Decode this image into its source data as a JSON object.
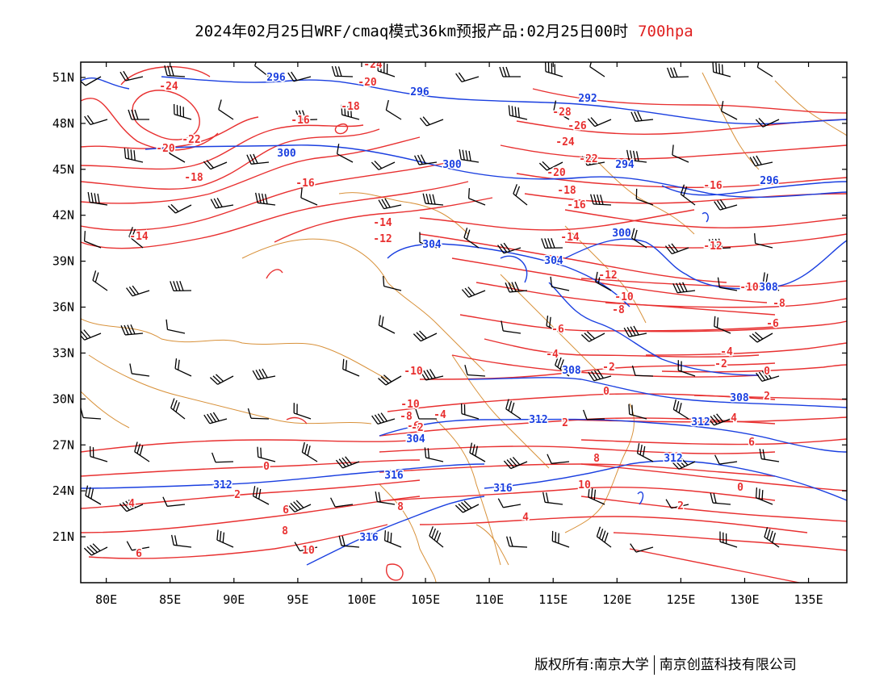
{
  "title": {
    "main": "2024年02月25日WRF/cmaq模式36km预报产品:02月25日00时",
    "level": "700hpa"
  },
  "axes": {
    "lat_ticks": [
      "21N",
      "24N",
      "27N",
      "30N",
      "33N",
      "36N",
      "39N",
      "42N",
      "45N",
      "48N",
      "51N"
    ],
    "lon_ticks": [
      "80E",
      "85E",
      "90E",
      "95E",
      "100E",
      "105E",
      "110E",
      "115E",
      "120E",
      "125E",
      "130E",
      "135E"
    ]
  },
  "colors": {
    "temperature": "#e83030",
    "height": "#1a3fe0",
    "border": "#d8913a",
    "frame": "#000000"
  },
  "map_data": {
    "lon_range": [
      78,
      138
    ],
    "lat_range": [
      18,
      52
    ],
    "height_contours": [
      "296",
      "296",
      "292",
      "294",
      "300",
      "300",
      "296",
      "304",
      "300",
      "304",
      "308",
      "308",
      "312",
      "312",
      "312",
      "316",
      "316",
      "312",
      "316",
      "308",
      "304"
    ],
    "temperature_contours": [
      "-24",
      "-24",
      "-22",
      "-20",
      "-20",
      "-18",
      "-18",
      "-16",
      "-16",
      "-14",
      "-14",
      "-12",
      "-10",
      "-10",
      "-8",
      "-6",
      "-4",
      "-2",
      "0",
      "2",
      "4",
      "6",
      "8",
      "10",
      "-28",
      "-26",
      "-24",
      "-22",
      "-20",
      "-18",
      "-16",
      "-14",
      "-12",
      "-10",
      "-8",
      "-6",
      "-4",
      "-2",
      "0",
      "2",
      "-16",
      "-12",
      "-10",
      "-8",
      "-6",
      "-4",
      "-2",
      "0",
      "2",
      "4",
      "6",
      "8",
      "10",
      "0",
      "2",
      "4",
      "6",
      "8"
    ]
  },
  "footer": {
    "copyright_left": "版权所有:南京大学",
    "copyright_right": "南京创蓝科技有限公司"
  }
}
